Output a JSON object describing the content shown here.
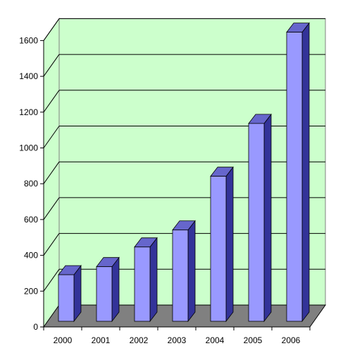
{
  "chart_data": {
    "type": "bar",
    "categories": [
      "2000",
      "2001",
      "2002",
      "2003",
      "2004",
      "2005",
      "2006"
    ],
    "values": [
      260,
      305,
      415,
      510,
      810,
      1105,
      1615
    ],
    "ylim": [
      0,
      1600
    ],
    "yticks": [
      "0",
      "200",
      "400",
      "600",
      "800",
      "1000",
      "1200",
      "1400",
      "1600"
    ],
    "grid": true,
    "three_d": true,
    "colors": {
      "wall": "#ccffcc",
      "floor": "#808080",
      "floor_edge": "#000000",
      "bar_front": "#9999ff",
      "bar_top": "#6666cc",
      "bar_side": "#333399",
      "gridline": "#000000"
    }
  }
}
